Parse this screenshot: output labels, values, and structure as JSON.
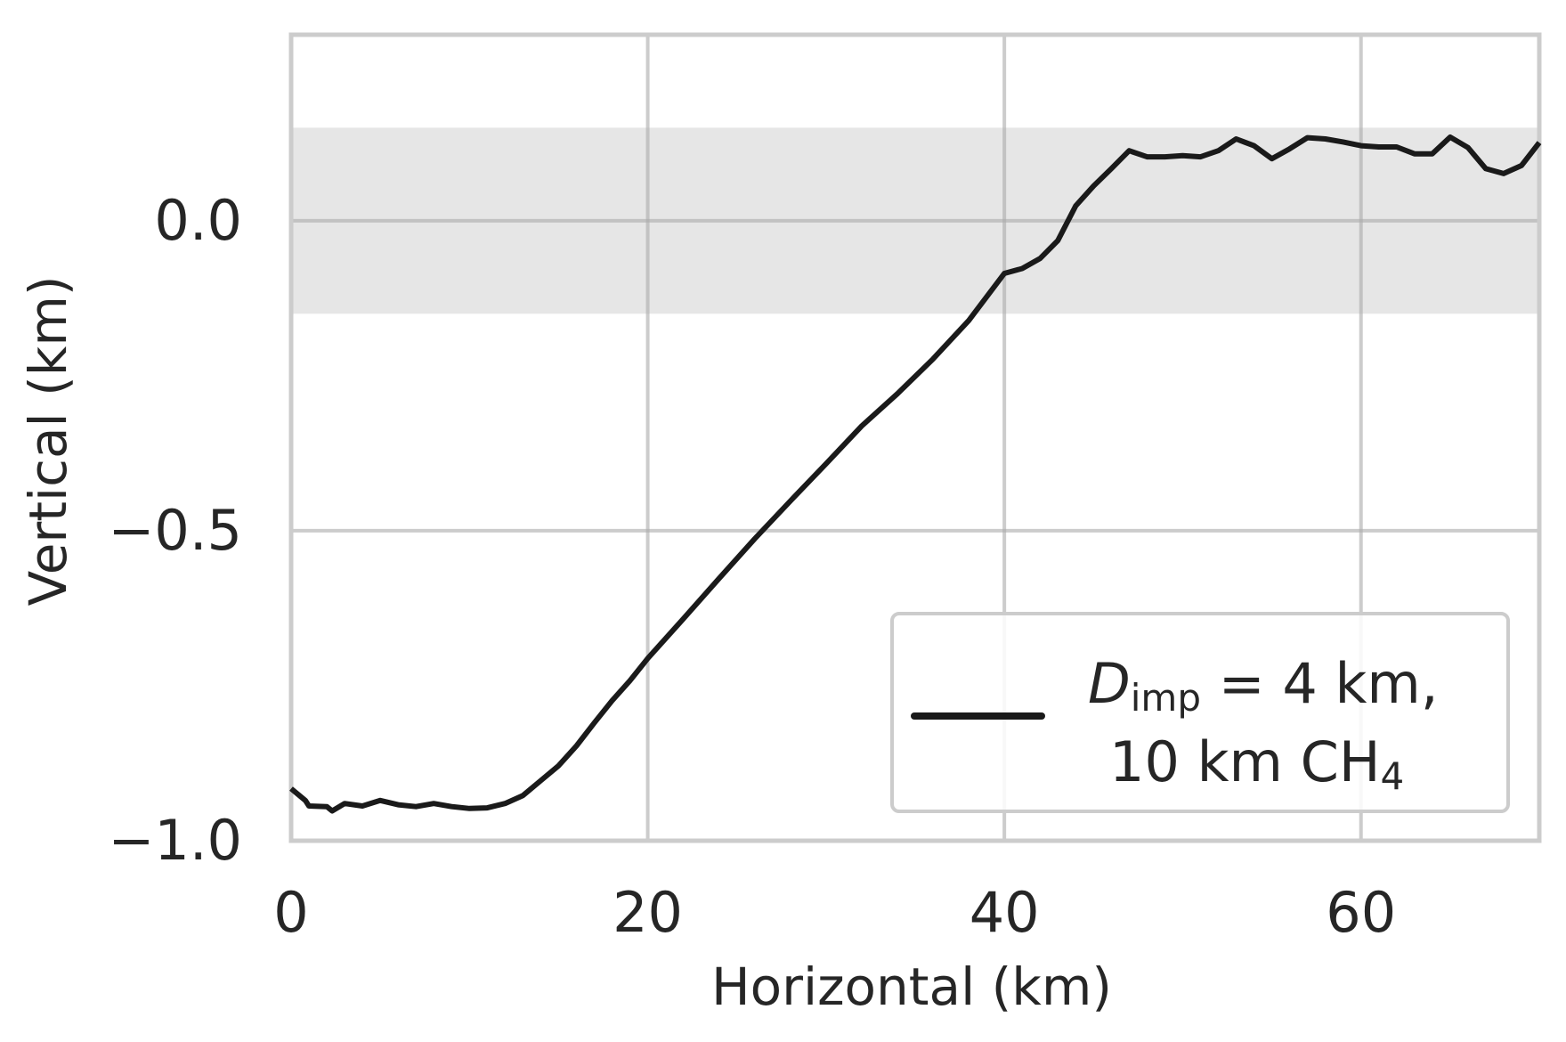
{
  "chart_data": {
    "type": "line",
    "x_label": "Horizontal (km)",
    "y_label": "Vertical (km)",
    "xlim": [
      0,
      70
    ],
    "xticks": [
      0,
      20,
      40,
      60
    ],
    "ylim": [
      -1.0,
      0.3
    ],
    "yticks": [
      {
        "value": -1.0,
        "label": "−1.0"
      },
      {
        "value": -0.5,
        "label": "−0.5"
      },
      {
        "value": 0.0,
        "label": "0.0"
      }
    ],
    "grid": true,
    "band": [
      -0.15,
      0.15
    ],
    "band_color": "#e6e6e6",
    "legend": "lower right",
    "x": [
      0,
      0.8,
      1,
      2,
      2.3,
      3,
      4,
      5,
      6,
      7,
      8,
      9,
      10,
      11,
      12,
      13,
      14,
      15,
      16,
      17,
      18,
      19,
      20,
      22,
      24,
      26,
      28,
      30,
      32,
      34,
      36,
      38,
      40,
      41,
      42,
      43,
      44,
      45,
      46,
      47,
      48,
      49,
      50,
      51,
      52,
      53,
      54,
      55,
      56,
      57,
      58,
      59,
      60,
      61,
      62,
      63,
      64,
      65,
      66,
      67,
      68,
      69,
      70
    ],
    "series": [
      {
        "name": [
          "D",
          "imp",
          " = 4 km,",
          "10 km CH",
          "4"
        ],
        "color": "#1a1a1a",
        "values": [
          -0.916,
          -0.935,
          -0.944,
          -0.945,
          -0.952,
          -0.94,
          -0.944,
          -0.935,
          -0.942,
          -0.945,
          -0.94,
          -0.945,
          -0.948,
          -0.947,
          -0.94,
          -0.927,
          -0.903,
          -0.879,
          -0.847,
          -0.81,
          -0.774,
          -0.742,
          -0.706,
          -0.642,
          -0.577,
          -0.513,
          -0.452,
          -0.392,
          -0.331,
          -0.279,
          -0.223,
          -0.161,
          -0.085,
          -0.077,
          -0.061,
          -0.032,
          0.024,
          0.056,
          0.084,
          0.113,
          0.103,
          0.103,
          0.105,
          0.103,
          0.113,
          0.132,
          0.121,
          0.1,
          0.116,
          0.134,
          0.132,
          0.127,
          0.121,
          0.119,
          0.119,
          0.108,
          0.108,
          0.135,
          0.118,
          0.084,
          0.076,
          0.089,
          0.126
        ]
      }
    ]
  }
}
